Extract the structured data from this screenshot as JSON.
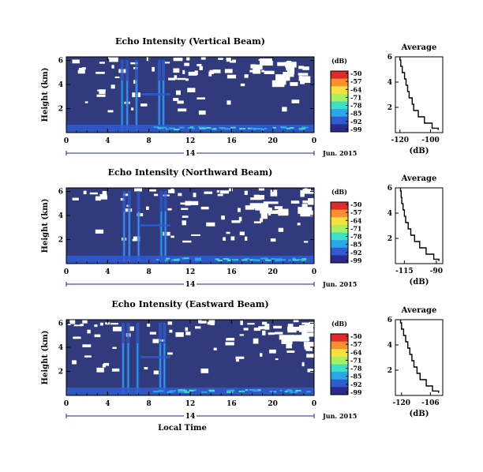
{
  "chart_data": [
    {
      "type": "heatmap",
      "title": "Echo Intensity (Vertical Beam)",
      "ylabel": "Height (km)",
      "x_ticks": [
        "0",
        "4",
        "8",
        "12",
        "16",
        "20",
        "0"
      ],
      "y_ticks": [
        "6",
        "4",
        "2"
      ],
      "date_label": "14",
      "month_label": "Jun. 2015",
      "colorbar_title": "(dB)",
      "colorbar_ticks": [
        "-50",
        "-57",
        "-64",
        "-71",
        "-78",
        "-85",
        "-92",
        "-99"
      ],
      "spikes_hour": [
        5.4,
        5.9,
        6.8,
        9.0,
        9.4
      ],
      "profile": {
        "title": "Average",
        "xlabel": "(dB)",
        "x_ticks": [
          "-120",
          "-100"
        ],
        "y_ticks": [
          "6",
          "4",
          "2"
        ],
        "xlim": [
          -123,
          -92
        ],
        "ylim": [
          0,
          6
        ],
        "height_km": [
          6.0,
          5.5,
          5.0,
          4.5,
          4.0,
          3.5,
          3.0,
          2.5,
          2.0,
          1.5,
          1.0,
          0.5,
          0.2
        ],
        "value_db": [
          -120,
          -119.5,
          -118.5,
          -117,
          -116,
          -115,
          -114,
          -112,
          -111,
          -108,
          -104,
          -99,
          -95
        ]
      }
    },
    {
      "type": "heatmap",
      "title": "Echo Intensity (Northward Beam)",
      "ylabel": "Height (km)",
      "x_ticks": [
        "0",
        "4",
        "8",
        "12",
        "16",
        "20",
        "0"
      ],
      "y_ticks": [
        "6",
        "4",
        "2"
      ],
      "date_label": "14",
      "month_label": "Jun. 2015",
      "colorbar_title": "(dB)",
      "colorbar_ticks": [
        "-50",
        "-57",
        "-64",
        "-71",
        "-78",
        "-85",
        "-92",
        "-99"
      ],
      "spikes_hour": [
        5.6,
        6.1,
        7.0,
        9.2,
        9.6
      ],
      "profile": {
        "title": "Average",
        "xlabel": "(dB)",
        "x_ticks": [
          "-115",
          "-90"
        ],
        "y_ticks": [
          "6",
          "4",
          "2"
        ],
        "xlim": [
          -122,
          -85
        ],
        "ylim": [
          0,
          6
        ],
        "height_km": [
          6.0,
          5.5,
          5.0,
          4.5,
          4.0,
          3.5,
          3.0,
          2.5,
          2.0,
          1.5,
          1.0,
          0.5,
          0.2
        ],
        "value_db": [
          -118,
          -117.5,
          -117,
          -116,
          -115,
          -114,
          -112,
          -110,
          -107,
          -103,
          -98,
          -92,
          -88
        ]
      }
    },
    {
      "type": "heatmap",
      "title": "Echo Intensity (Eastward Beam)",
      "ylabel": "Height (km)",
      "xlabel": "Local Time",
      "x_ticks": [
        "0",
        "4",
        "8",
        "12",
        "16",
        "20",
        "0"
      ],
      "y_ticks": [
        "6",
        "4",
        "2"
      ],
      "date_label": "14",
      "month_label": "Jun. 2015",
      "colorbar_title": "(dB)",
      "colorbar_ticks": [
        "-50",
        "-57",
        "-64",
        "-71",
        "-78",
        "-85",
        "-92",
        "-99"
      ],
      "spikes_hour": [
        5.5,
        6.0,
        6.9,
        9.1,
        9.5
      ],
      "profile": {
        "title": "Average",
        "xlabel": "(dB)",
        "x_ticks": [
          "-120",
          "-106"
        ],
        "y_ticks": [
          "6",
          "4",
          "2"
        ],
        "xlim": [
          -123,
          -100
        ],
        "ylim": [
          0,
          6
        ],
        "height_km": [
          6.0,
          5.5,
          5.0,
          4.5,
          4.0,
          3.5,
          3.0,
          2.5,
          2.0,
          1.5,
          1.0,
          0.5,
          0.2
        ],
        "value_db": [
          -120.5,
          -120,
          -119,
          -118,
          -117,
          -116,
          -115,
          -114,
          -112.5,
          -111,
          -108,
          -105,
          -102
        ]
      }
    }
  ],
  "colors": {
    "background_field": "#303a7c",
    "no_data": "#ffffff",
    "colormap": [
      "#2a2b8c",
      "#2f5ccf",
      "#2ba7e8",
      "#3fe0c8",
      "#a8f060",
      "#f8e040",
      "#f89030",
      "#e02a2a"
    ]
  }
}
